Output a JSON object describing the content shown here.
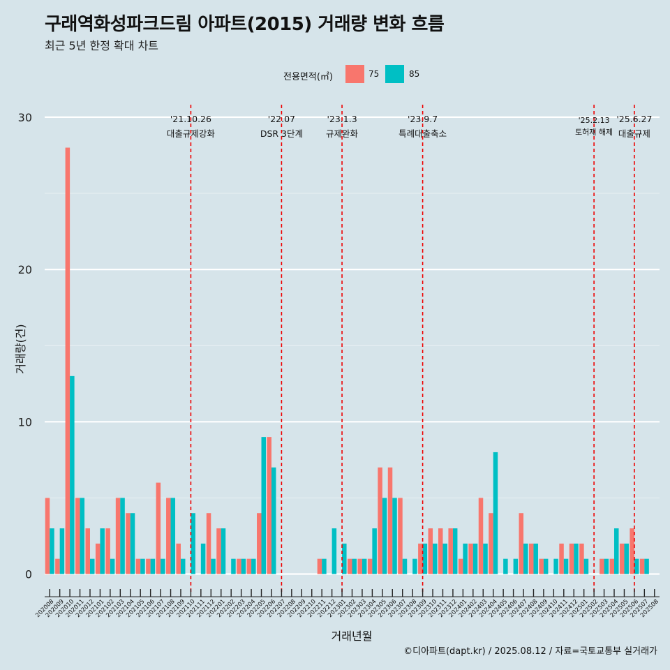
{
  "title": "구래역화성파크드림 아파트(2015) 거래량 변화 흐름",
  "subtitle": "최근 5년 한정 확대 차트",
  "caption": "©디아파트(dapt.kr) / 2025.08.12 / 자료=국토교통부 실거래가",
  "colors": {
    "background": "#d6e4ea",
    "series_75": "#f8766d",
    "series_85": "#00bfc4",
    "event_line": "#ee0000",
    "grid": "#ffffff"
  },
  "chart_data": {
    "type": "bar",
    "xlabel": "거래년월",
    "ylabel": "거래량(건)",
    "ylim": [
      -1.3,
      30.5
    ],
    "yticks": [
      0,
      10,
      20,
      30
    ],
    "grid": true,
    "legend_title": "전용면적(㎡)",
    "legend_position": "top",
    "categories": [
      "202008",
      "202009",
      "202010",
      "202011",
      "202012",
      "202101",
      "202102",
      "202103",
      "202104",
      "202105",
      "202106",
      "202107",
      "202108",
      "202109",
      "202110",
      "202111",
      "202112",
      "202201",
      "202202",
      "202203",
      "202204",
      "202205",
      "202206",
      "202207",
      "202208",
      "202209",
      "202210",
      "202211",
      "202212",
      "202301",
      "202302",
      "202303",
      "202304",
      "202305",
      "202306",
      "202307",
      "202308",
      "202309",
      "202310",
      "202311",
      "202312",
      "202401",
      "202402",
      "202403",
      "202404",
      "202405",
      "202406",
      "202407",
      "202408",
      "202409",
      "202410",
      "202411",
      "202412",
      "202501",
      "202502",
      "202503",
      "202504",
      "202505",
      "202506",
      "202507",
      "202508"
    ],
    "series": [
      {
        "name": "75",
        "values": [
          5,
          1,
          28,
          5,
          3,
          2,
          3,
          5,
          4,
          1,
          1,
          6,
          5,
          2,
          0,
          0,
          4,
          3,
          0,
          1,
          1,
          4,
          9,
          0,
          0,
          0,
          0,
          1,
          0,
          0,
          1,
          1,
          1,
          7,
          7,
          5,
          0,
          2,
          3,
          3,
          3,
          1,
          2,
          5,
          4,
          0,
          0,
          4,
          2,
          1,
          0,
          2,
          2,
          2,
          0,
          1,
          1,
          2,
          3,
          1,
          0
        ]
      },
      {
        "name": "85",
        "values": [
          3,
          3,
          13,
          5,
          1,
          3,
          1,
          5,
          4,
          1,
          1,
          1,
          5,
          1,
          4,
          2,
          1,
          3,
          1,
          1,
          1,
          9,
          7,
          0,
          0,
          0,
          0,
          1,
          3,
          2,
          1,
          1,
          3,
          5,
          5,
          1,
          1,
          2,
          2,
          2,
          3,
          2,
          2,
          2,
          8,
          1,
          1,
          2,
          2,
          1,
          1,
          1,
          2,
          1,
          0,
          1,
          3,
          2,
          1,
          1,
          0
        ]
      }
    ],
    "events": [
      {
        "category": "202110",
        "date": "'21.10.26",
        "label": "대출규제강화"
      },
      {
        "category": "202207",
        "date": "'22.07",
        "label": "DSR 3단계"
      },
      {
        "category": "202301",
        "date": "'23.1.3",
        "label": "규제완화"
      },
      {
        "category": "202309",
        "date": "'23.9.7",
        "label": "특례대출축소"
      },
      {
        "category": "202502",
        "date": "'25.2.13",
        "label": "토허제 해제"
      },
      {
        "category": "202506",
        "date": "'25.6.27",
        "label": "대출규제"
      }
    ]
  }
}
